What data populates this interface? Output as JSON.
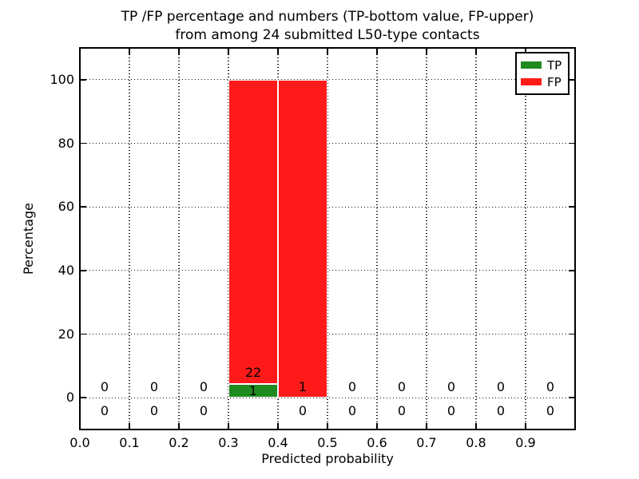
{
  "chart_data": {
    "type": "bar",
    "stacked": true,
    "title_lines": [
      "TP /FP percentage and numbers (TP-bottom value, FP-upper)",
      "from among 24 submitted L50-type contacts"
    ],
    "xlabel": "Predicted probability",
    "ylabel": "Percentage",
    "xlim": [
      0.0,
      1.0
    ],
    "ylim": [
      -10,
      110
    ],
    "grid": true,
    "xtick_labels": [
      "0.0",
      "0.1",
      "0.2",
      "0.3",
      "0.4",
      "0.5",
      "0.6",
      "0.7",
      "0.8",
      "0.9"
    ],
    "xtick_values": [
      0.0,
      0.1,
      0.2,
      0.3,
      0.4,
      0.5,
      0.6,
      0.7,
      0.8,
      0.9
    ],
    "ytick_labels": [
      "0",
      "20",
      "40",
      "60",
      "80",
      "100"
    ],
    "ytick_values": [
      0,
      20,
      40,
      60,
      80,
      100
    ],
    "bin_edges": [
      0.0,
      0.1,
      0.2,
      0.3,
      0.4,
      0.5,
      0.6,
      0.7,
      0.8,
      0.9,
      1.0
    ],
    "bin_centers": [
      0.05,
      0.15,
      0.25,
      0.35,
      0.45,
      0.55,
      0.65,
      0.75,
      0.85,
      0.95
    ],
    "series": [
      {
        "name": "TP",
        "color": "#1f8a1f",
        "counts": [
          0,
          0,
          0,
          1,
          0,
          0,
          0,
          0,
          0,
          0
        ],
        "percents": [
          0,
          0,
          0,
          4.35,
          0,
          0,
          0,
          0,
          0,
          0
        ]
      },
      {
        "name": "FP",
        "color": "#ff1a1a",
        "counts": [
          0,
          0,
          0,
          22,
          1,
          0,
          0,
          0,
          0,
          0
        ],
        "percents": [
          0,
          0,
          0,
          95.65,
          100,
          0,
          0,
          0,
          0,
          0
        ]
      }
    ],
    "legend": {
      "position": "upper right",
      "entries": [
        {
          "label": "TP",
          "color": "#1f8a1f"
        },
        {
          "label": "FP",
          "color": "#ff1a1a"
        }
      ]
    }
  }
}
